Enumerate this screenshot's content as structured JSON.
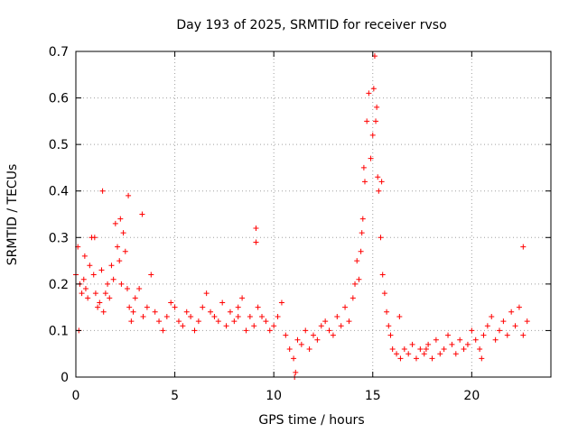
{
  "chart_data": {
    "type": "scatter",
    "title": "Day 193 of 2025, SRMTID for receiver rvso",
    "xlabel": "GPS time / hours",
    "ylabel": "SRMTID / TECUs",
    "xlim": [
      0,
      24
    ],
    "ylim": [
      0,
      0.7
    ],
    "xticks": [
      0,
      5,
      10,
      15,
      20
    ],
    "xtick_labels": [
      "0",
      "5",
      "10",
      "15",
      "20"
    ],
    "yticks": [
      0,
      0.1,
      0.2,
      0.3,
      0.4,
      0.5,
      0.6,
      0.7
    ],
    "ytick_labels": [
      "0",
      "0.1",
      "0.2",
      "0.3",
      "0.4",
      "0.5",
      "0.6",
      "0.7"
    ],
    "grid": true,
    "marker": "plus",
    "color": "#ff0000",
    "series": [
      {
        "name": "SRMTID",
        "x": [
          0.0,
          0.1,
          0.2,
          0.3,
          0.4,
          0.5,
          0.6,
          0.7,
          0.8,
          0.9,
          1.0,
          1.1,
          1.2,
          1.3,
          1.4,
          1.5,
          1.6,
          1.7,
          1.8,
          1.9,
          2.0,
          2.1,
          2.2,
          2.3,
          2.4,
          2.5,
          2.6,
          2.7,
          2.8,
          2.9,
          3.0,
          3.2,
          3.4,
          3.6,
          3.8,
          4.0,
          4.2,
          4.4,
          4.6,
          4.8,
          5.0,
          5.2,
          5.4,
          5.6,
          5.8,
          6.0,
          6.2,
          6.4,
          6.6,
          6.8,
          7.0,
          7.2,
          7.4,
          7.6,
          7.8,
          8.0,
          8.2,
          8.4,
          8.6,
          8.8,
          9.0,
          9.1,
          9.2,
          9.4,
          9.6,
          9.8,
          10.0,
          10.2,
          10.4,
          10.6,
          10.8,
          11.0,
          11.1,
          11.2,
          11.4,
          11.6,
          11.8,
          12.0,
          12.2,
          12.4,
          12.6,
          12.8,
          13.0,
          13.2,
          13.4,
          13.6,
          13.8,
          14.0,
          14.1,
          14.2,
          14.3,
          14.4,
          14.5,
          14.6,
          14.7,
          14.8,
          14.9,
          15.0,
          15.1,
          15.2,
          15.3,
          15.4,
          15.5,
          15.6,
          15.7,
          15.8,
          15.9,
          16.0,
          16.2,
          16.4,
          16.6,
          16.8,
          17.0,
          17.2,
          17.4,
          17.6,
          17.8,
          18.0,
          18.2,
          18.4,
          18.6,
          18.8,
          19.0,
          19.2,
          19.4,
          19.6,
          19.8,
          20.0,
          20.2,
          20.4,
          20.6,
          20.8,
          21.0,
          21.2,
          21.4,
          21.6,
          21.8,
          22.0,
          22.2,
          22.4,
          22.6,
          22.8,
          0.15,
          0.45,
          0.95,
          1.35,
          2.25,
          2.65,
          3.35,
          8.2,
          9.1,
          11.05,
          14.45,
          14.55,
          15.05,
          15.15,
          15.25,
          15.45,
          16.35,
          17.7,
          20.5,
          22.6
        ],
        "y": [
          0.22,
          0.28,
          0.2,
          0.18,
          0.21,
          0.19,
          0.17,
          0.24,
          0.3,
          0.22,
          0.18,
          0.15,
          0.16,
          0.23,
          0.14,
          0.18,
          0.2,
          0.17,
          0.24,
          0.21,
          0.33,
          0.28,
          0.25,
          0.2,
          0.31,
          0.27,
          0.19,
          0.15,
          0.12,
          0.14,
          0.17,
          0.19,
          0.13,
          0.15,
          0.22,
          0.14,
          0.12,
          0.1,
          0.13,
          0.16,
          0.15,
          0.12,
          0.11,
          0.14,
          0.13,
          0.1,
          0.12,
          0.15,
          0.18,
          0.14,
          0.13,
          0.12,
          0.16,
          0.11,
          0.14,
          0.12,
          0.15,
          0.17,
          0.1,
          0.13,
          0.11,
          0.29,
          0.15,
          0.13,
          0.12,
          0.1,
          0.11,
          0.13,
          0.16,
          0.09,
          0.06,
          0.04,
          0.01,
          0.08,
          0.07,
          0.1,
          0.06,
          0.09,
          0.08,
          0.11,
          0.12,
          0.1,
          0.09,
          0.13,
          0.11,
          0.15,
          0.12,
          0.17,
          0.2,
          0.25,
          0.21,
          0.27,
          0.34,
          0.42,
          0.55,
          0.61,
          0.47,
          0.52,
          0.69,
          0.58,
          0.4,
          0.3,
          0.22,
          0.18,
          0.14,
          0.11,
          0.09,
          0.06,
          0.05,
          0.04,
          0.06,
          0.05,
          0.07,
          0.04,
          0.06,
          0.05,
          0.07,
          0.04,
          0.08,
          0.05,
          0.06,
          0.09,
          0.07,
          0.05,
          0.08,
          0.06,
          0.07,
          0.1,
          0.08,
          0.06,
          0.09,
          0.11,
          0.13,
          0.08,
          0.1,
          0.12,
          0.09,
          0.14,
          0.11,
          0.15,
          0.09,
          0.12,
          0.1,
          0.26,
          0.3,
          0.4,
          0.34,
          0.39,
          0.35,
          0.13,
          0.32,
          0.0,
          0.31,
          0.45,
          0.62,
          0.55,
          0.43,
          0.42,
          0.13,
          0.06,
          0.04,
          0.28
        ]
      }
    ]
  }
}
